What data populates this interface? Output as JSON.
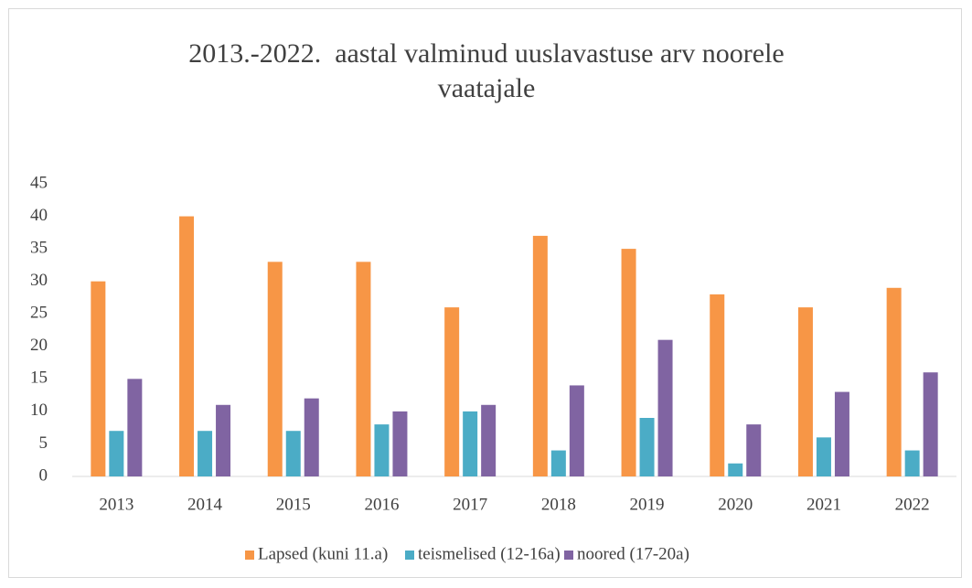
{
  "chart_data": {
    "type": "bar",
    "title": "2013.-2022.  aastal valminud uuslavastuse arv noorele vaatajale",
    "categories": [
      "2013",
      "2014",
      "2015",
      "2016",
      "2017",
      "2018",
      "2019",
      "2020",
      "2021",
      "2022"
    ],
    "series": [
      {
        "name": "Lapsed (kuni 11.a)",
        "color": "#f79646",
        "values": [
          30,
          40,
          33,
          33,
          26,
          37,
          35,
          28,
          26,
          29
        ]
      },
      {
        "name": "teismelised (12-16a)",
        "color": "#4bacc6",
        "values": [
          7,
          7,
          7,
          8,
          10,
          4,
          9,
          2,
          6,
          4
        ]
      },
      {
        "name": "noored (17-20a)",
        "color": "#8064a2",
        "values": [
          15,
          11,
          12,
          10,
          11,
          14,
          21,
          8,
          13,
          16
        ]
      }
    ],
    "ylim": [
      0,
      45
    ],
    "yticks": [
      0,
      5,
      10,
      15,
      20,
      25,
      30,
      35,
      40,
      45
    ],
    "grid": false,
    "legend": "bottom"
  }
}
